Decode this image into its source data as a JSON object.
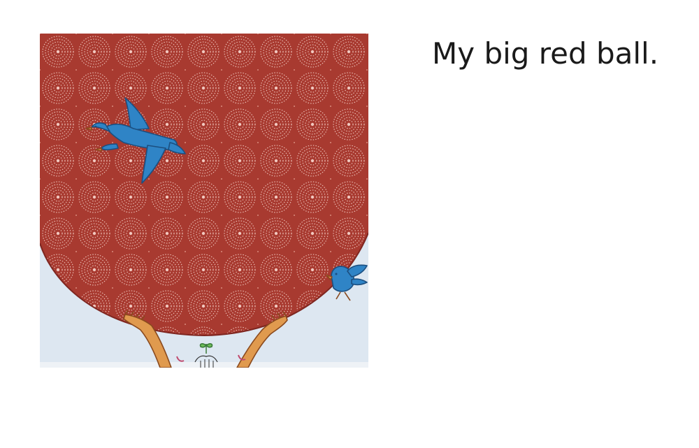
{
  "page": {
    "caption": "My big red ball."
  },
  "illustration": {
    "subject": "illustration",
    "colors": {
      "ball": "#a83a30",
      "ball_pattern": "#f1c8bf",
      "sky": "#dde7f1",
      "bird": "#2f84c6",
      "bird_outline": "#1c4f80",
      "arm": "#e09a4e",
      "arm_outline": "#8a4a1e"
    },
    "icons": [
      "flying-bird-icon",
      "small-bird-icon",
      "raised-hands-icon"
    ]
  }
}
